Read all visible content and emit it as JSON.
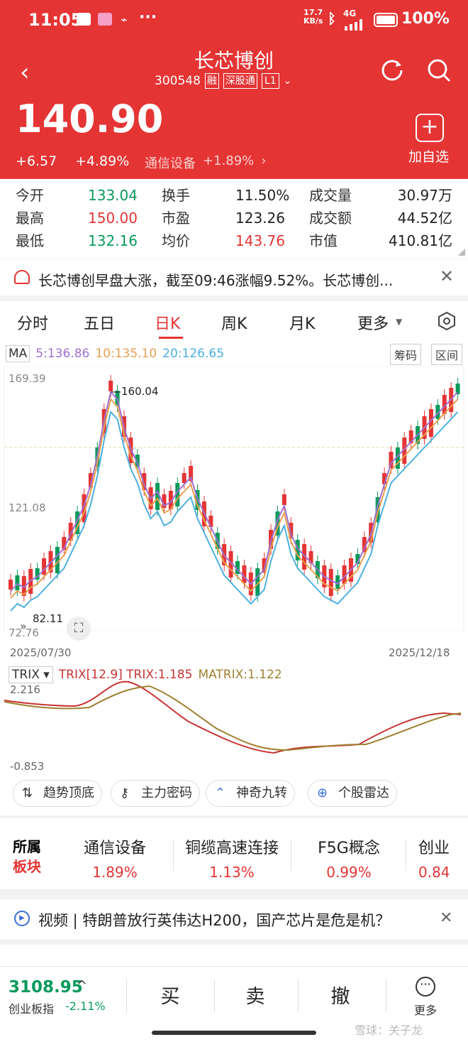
{
  "status_bar": {
    "time": "11:05",
    "net_speed": "17.7\nKB/s",
    "net_speed_top": "17.7",
    "net_speed_bottom": "KB/s",
    "signal": "4G",
    "battery": "100%"
  },
  "header": {
    "title": "长芯博创",
    "code": "300548",
    "badge_rong": "融",
    "badge_sgt": "深股通",
    "badge_level": "L1",
    "add_watch": "加自选"
  },
  "price": {
    "last": "140.90",
    "change": "+6.57",
    "change_pct": "+4.89%",
    "sector_name": "通信设备",
    "sector_change": "+1.89%"
  },
  "quote": {
    "open_label": "今开",
    "open": "133.04",
    "high_label": "最高",
    "high": "150.00",
    "low_label": "最低",
    "low": "132.16",
    "turnover_label": "换手",
    "turnover": "11.50%",
    "pe_label": "市盈",
    "pe": "123.26",
    "avg_label": "均价",
    "avg": "143.76",
    "volume_label": "成交量",
    "volume": "30.97万",
    "amount_label": "成交额",
    "amount": "44.52亿",
    "mktcap_label": "市值",
    "mktcap": "410.81亿"
  },
  "news_banner": "长芯博创早盘大涨，截至09:46涨幅9.52%。长芯博创...",
  "tabs": [
    "分时",
    "五日",
    "日K",
    "周K",
    "月K",
    "更多"
  ],
  "active_tab": "日K",
  "ma_bar": {
    "label": "MA",
    "ma5": "5:136.86",
    "ma10": "10:135.10",
    "ma20": "20:126.65",
    "btn_chips": "筹码",
    "btn_range": "区间"
  },
  "chart_data": {
    "type": "candlestick",
    "y_ticks": [
      "169.39",
      "121.08",
      "72.76"
    ],
    "x_start": "2025/07/30",
    "x_end": "2025/12/18",
    "max_label": "160.04",
    "min_label": "82.11",
    "trix_label": "TRIX",
    "trix_values": "TRIX[12.9] TRIX:1.185",
    "matrix_value": "MATRIX:1.122",
    "trix_ticks": [
      "2.216",
      "-0.853"
    ],
    "ylim": [
      72.76,
      169.39
    ],
    "colors": {
      "up": "#e53434",
      "down": "#0a9a5c",
      "ma5": "#a070d0",
      "ma10": "#e8a050",
      "ma20": "#4ab0e0"
    }
  },
  "tools": [
    "趋势顶底",
    "主力密码",
    "神奇九转",
    "个股雷达"
  ],
  "sectors": {
    "label_top": "所属",
    "label_bottom": "板块",
    "items": [
      {
        "name": "通信设备",
        "pct": "1.89%"
      },
      {
        "name": "铜缆高速连接",
        "pct": "1.13%"
      },
      {
        "name": "F5G概念",
        "pct": "0.99%"
      },
      {
        "name": "创业",
        "pct": "0.84"
      }
    ]
  },
  "video_banner": "视频 | 特朗普放行英伟达H200，国产芯片是危是机？",
  "bottom_bar": {
    "index_value": "3108.95",
    "index_name": "创业板指",
    "index_change": "-2.11%",
    "buy": "买",
    "sell": "卖",
    "cancel": "撤",
    "more": "更多"
  },
  "watermark": "雪球：关子龙"
}
